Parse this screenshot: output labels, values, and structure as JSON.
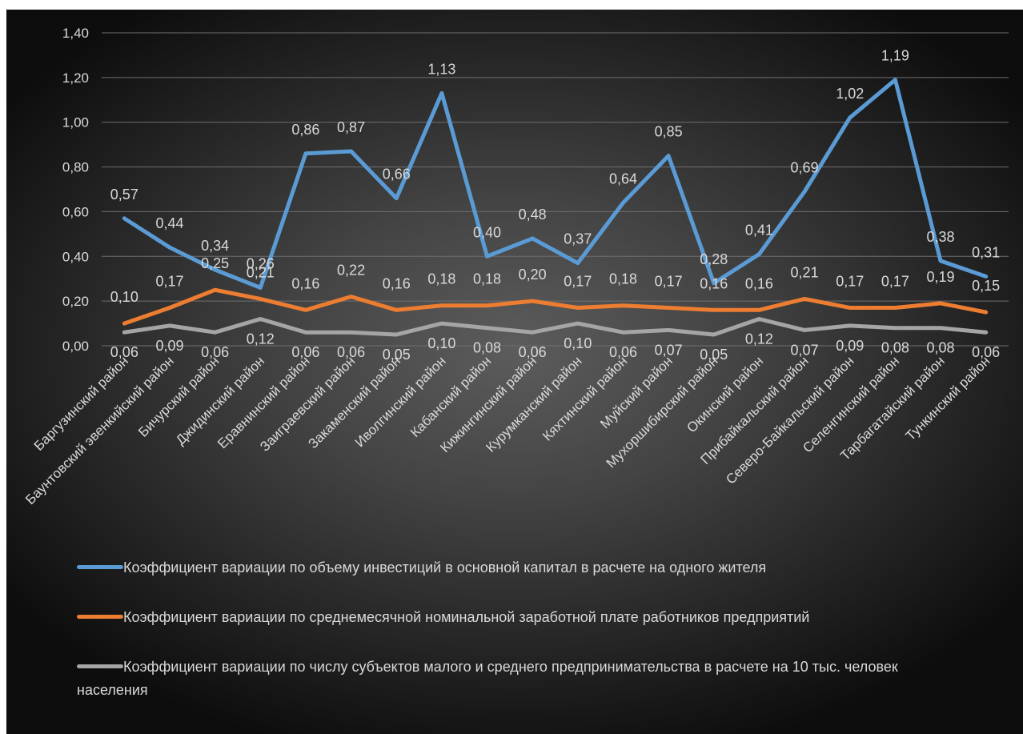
{
  "chart_data": {
    "type": "line",
    "title": "",
    "xlabel": "",
    "ylabel": "",
    "ylim": [
      0,
      1.4
    ],
    "y_ticks": [
      "0,00",
      "0,20",
      "0,40",
      "0,60",
      "0,80",
      "1,00",
      "1,20",
      "1,40"
    ],
    "grid": true,
    "legend_position": "bottom",
    "categories": [
      "Баргузинский район",
      "Баунтовский эвенкийский район",
      "Бичурский район",
      "Джидинский район",
      "Еравнинский район",
      "Заиграевский район",
      "Закаменский район",
      "Иволгинский район",
      "Кабанский район",
      "Кижингинский район",
      "Курумканский район",
      "Кяхтинский район",
      "Муйский район",
      "Мухоршибирский район",
      "Окинский район",
      "Прибайкальский район",
      "Северо-Байкальский район",
      "Селенгинский район",
      "Тарбагатайский район",
      "Тункинский район"
    ],
    "series": [
      {
        "name": "Коэффициент вариации по объему инвестиций в основной капитал в расчете на одного жителя",
        "color": "#5b9bd5",
        "values": [
          0.57,
          0.44,
          0.34,
          0.26,
          0.86,
          0.87,
          0.66,
          1.13,
          0.4,
          0.48,
          0.37,
          0.64,
          0.85,
          0.28,
          0.41,
          0.69,
          1.02,
          1.19,
          0.38,
          0.31
        ],
        "labels": [
          "0,57",
          "0,44",
          "0,34",
          "0,26",
          "0,86",
          "0,87",
          "0,66",
          "1,13",
          "0,40",
          "0,48",
          "0,37",
          "0,64",
          "0,85",
          "0,28",
          "0,41",
          "0,69",
          "1,02",
          "1,19",
          "0,38",
          "0,31"
        ]
      },
      {
        "name": "Коэффициент вариации по среднемесячной номинальной заработной плате работников предприятий",
        "color": "#ed7d31",
        "values": [
          0.1,
          0.17,
          0.25,
          0.21,
          0.16,
          0.22,
          0.16,
          0.18,
          0.18,
          0.2,
          0.17,
          0.18,
          0.17,
          0.16,
          0.16,
          0.21,
          0.17,
          0.17,
          0.19,
          0.15
        ],
        "labels": [
          "0,10",
          "0,17",
          "0,25",
          "0,21",
          "0,16",
          "0,22",
          "0,16",
          "0,18",
          "0,18",
          "0,20",
          "0,17",
          "0,18",
          "0,17",
          "0,16",
          "0,16",
          "0,21",
          "0,17",
          "0,17",
          "0,19",
          "0,15"
        ]
      },
      {
        "name": "Коэффициент вариации по числу субъектов малого и среднего предпринимательства в расчете на 10 тыс. человек населения",
        "color": "#a5a5a5",
        "values": [
          0.06,
          0.09,
          0.06,
          0.12,
          0.06,
          0.06,
          0.05,
          0.1,
          0.08,
          0.06,
          0.1,
          0.06,
          0.07,
          0.05,
          0.12,
          0.07,
          0.09,
          0.08,
          0.08,
          0.06
        ],
        "labels": [
          "0,06",
          "0,09",
          "0,06",
          "0,12",
          "0,06",
          "0,06",
          "0,05",
          "0,10",
          "0,08",
          "0,06",
          "0,10",
          "0,06",
          "0,07",
          "0,05",
          "0,12",
          "0,07",
          "0,09",
          "0,08",
          "0,08",
          "0,06"
        ]
      }
    ]
  }
}
